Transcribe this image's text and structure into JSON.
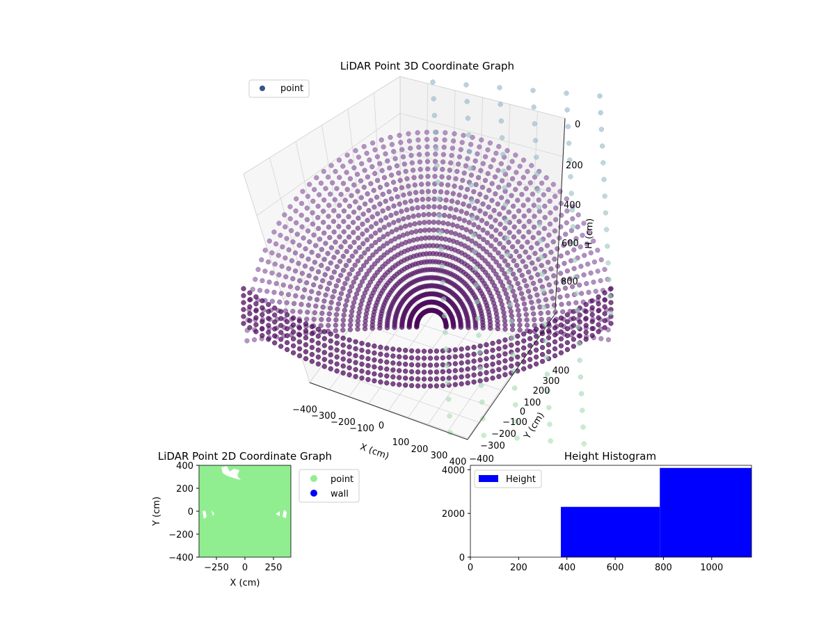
{
  "chart_data": [
    {
      "type": "scatter",
      "title": "LiDAR Point 3D Coordinate Graph",
      "xlabel": "X (cm)",
      "ylabel": "Y (cm)",
      "zlabel": "H (cm)",
      "legend": {
        "placement": "top-left",
        "entries": [
          "point"
        ]
      },
      "x_ticks": [
        "−400",
        "−300",
        "−200",
        "−100",
        "0",
        "100",
        "200",
        "300",
        "400"
      ],
      "y_ticks": [
        "−400",
        "−300",
        "−200",
        "−100",
        "0",
        "100",
        "200",
        "300",
        "400"
      ],
      "z_ticks": [
        "0",
        "200",
        "400",
        "600",
        "800"
      ],
      "xlim": [
        -400,
        400
      ],
      "ylim": [
        -400,
        400
      ],
      "zlim": [
        0,
        1000
      ],
      "grid": true,
      "colors": {
        "near": "#440154",
        "mid": "#5d4d9b",
        "far": "#a3d9b7"
      }
    },
    {
      "type": "scatter",
      "title": "LiDAR Point 2D Coordinate Graph",
      "xlabel": "X (cm)",
      "ylabel": "Y (cm)",
      "x_ticks": [
        "−250",
        "0",
        "250"
      ],
      "y_ticks": [
        "400",
        "200",
        "0",
        "−200",
        "−400"
      ],
      "xlim": [
        -400,
        400
      ],
      "ylim": [
        -400,
        400
      ],
      "legend": {
        "placement": "outside-right",
        "entries": [
          "point",
          "wall"
        ]
      },
      "series": [
        {
          "name": "point",
          "color": "#90ee90"
        },
        {
          "name": "wall",
          "color": "#0000ff"
        }
      ]
    },
    {
      "type": "bar",
      "title": "Height Histogram",
      "legend": {
        "placement": "top-left",
        "entries": [
          "Height"
        ]
      },
      "x_ticks": [
        "0",
        "200",
        "400",
        "600",
        "800",
        "1000"
      ],
      "y_ticks": [
        "0",
        "2000",
        "4000"
      ],
      "xlim": [
        0,
        1165
      ],
      "ylim": [
        0,
        4200
      ],
      "bins": [
        {
          "x0": 375,
          "x1": 785,
          "value": 2300
        },
        {
          "x0": 785,
          "x1": 1165,
          "value": 4080
        }
      ],
      "color": "#0000ff"
    }
  ]
}
